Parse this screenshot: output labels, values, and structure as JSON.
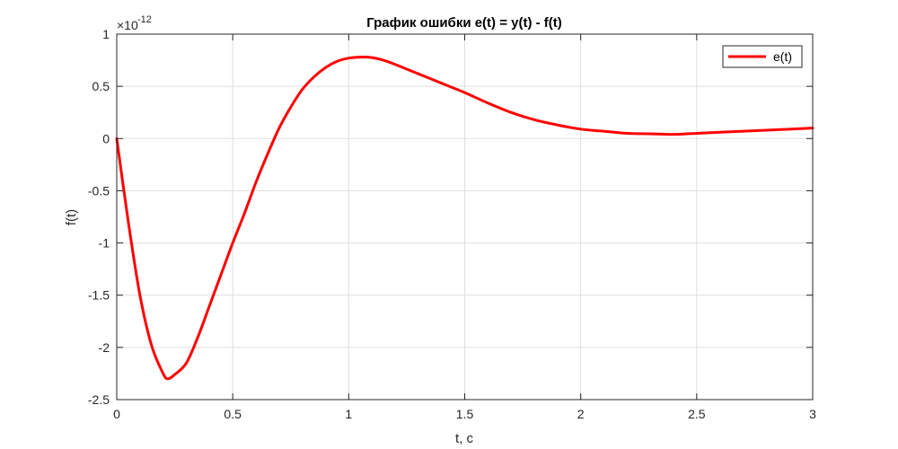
{
  "chart_data": {
    "type": "line",
    "title": "График ошибки e(t) = y(t) - f(t)",
    "xlabel": "t, c",
    "ylabel": "f(t)",
    "y_multiplier_base": "×10",
    "y_multiplier_exp": "-12",
    "xlim": [
      0,
      3
    ],
    "ylim": [
      -2.5,
      1
    ],
    "x_ticks": [
      0,
      0.5,
      1,
      1.5,
      2,
      2.5,
      3
    ],
    "x_tick_labels": [
      "0",
      "0.5",
      "1",
      "1.5",
      "2",
      "2.5",
      "3"
    ],
    "y_ticks": [
      1,
      0.5,
      0,
      -0.5,
      -1,
      -1.5,
      -2,
      -2.5
    ],
    "y_tick_labels": [
      "1",
      "0.5",
      "0",
      "-0.5",
      "-1",
      "-1.5",
      "-2",
      "-2.5"
    ],
    "grid": true,
    "legend_position": "top-right",
    "series": [
      {
        "name": "e(t)",
        "color": "#ff0000",
        "x": [
          0,
          0.05,
          0.1,
          0.15,
          0.2,
          0.22,
          0.25,
          0.3,
          0.35,
          0.4,
          0.45,
          0.5,
          0.55,
          0.6,
          0.65,
          0.7,
          0.75,
          0.8,
          0.85,
          0.9,
          0.95,
          1.0,
          1.05,
          1.1,
          1.15,
          1.2,
          1.3,
          1.4,
          1.5,
          1.6,
          1.7,
          1.8,
          1.9,
          2.0,
          2.1,
          2.2,
          2.3,
          2.4,
          2.5,
          2.6,
          2.7,
          2.8,
          2.9,
          3.0
        ],
        "y": [
          0,
          -0.8,
          -1.5,
          -1.98,
          -2.25,
          -2.3,
          -2.26,
          -2.15,
          -1.9,
          -1.6,
          -1.3,
          -1.0,
          -0.72,
          -0.42,
          -0.15,
          0.1,
          0.3,
          0.47,
          0.59,
          0.68,
          0.74,
          0.77,
          0.78,
          0.775,
          0.75,
          0.71,
          0.62,
          0.53,
          0.44,
          0.34,
          0.25,
          0.18,
          0.13,
          0.09,
          0.07,
          0.05,
          0.045,
          0.04,
          0.05,
          0.06,
          0.07,
          0.08,
          0.09,
          0.1
        ]
      }
    ]
  }
}
